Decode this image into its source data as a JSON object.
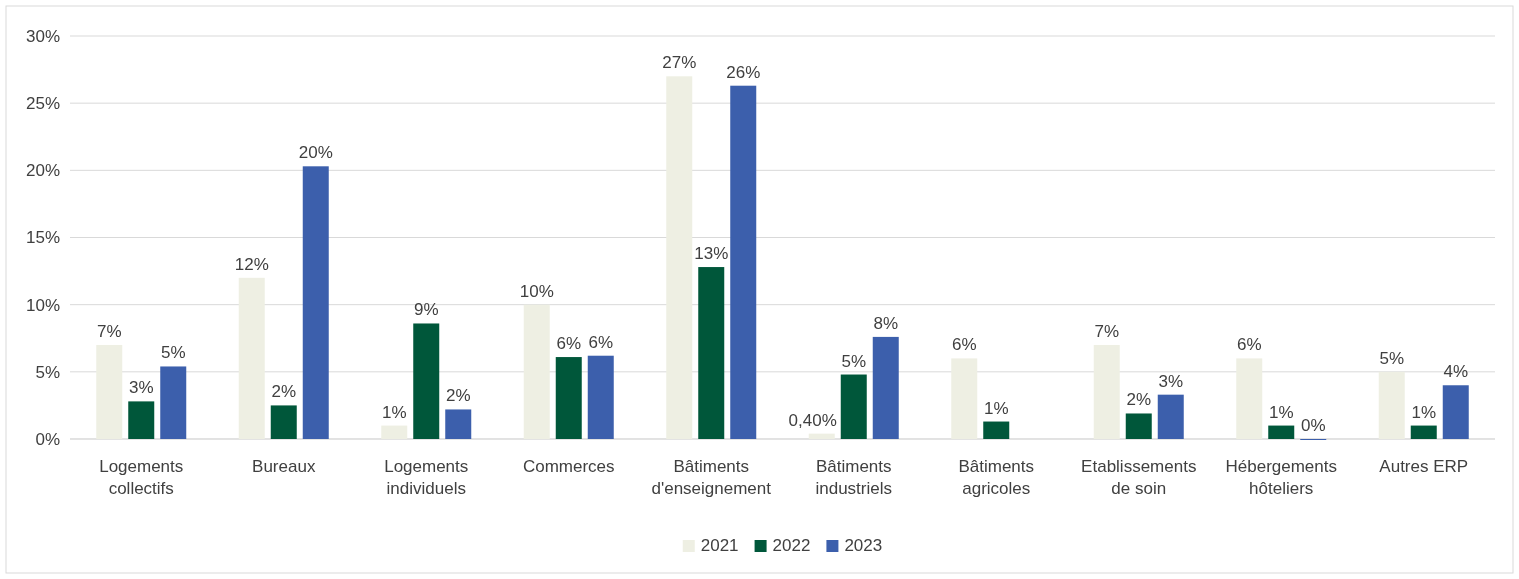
{
  "chart_data": {
    "type": "bar",
    "categories": [
      "Logements collectifs",
      "Bureaux",
      "Logements individuels",
      "Commerces",
      "Bâtiments d'enseignement",
      "Bâtiments industriels",
      "Bâtiments agricoles",
      "Etablissements de soin",
      "Hébergements hôteliers",
      "Autres ERP"
    ],
    "series": [
      {
        "name": "2021",
        "color": "#eeefe3",
        "values": [
          7,
          12,
          1,
          10,
          27,
          0.4,
          6,
          7,
          6,
          5
        ],
        "value_labels": [
          "7%",
          "12%",
          "1%",
          "10%",
          "27%",
          "0,40%",
          "6%",
          "7%",
          "6%",
          "5%"
        ]
      },
      {
        "name": "2022",
        "color": "#00573a",
        "values": [
          2.8,
          2.5,
          8.6,
          6.1,
          12.8,
          4.8,
          1.3,
          1.9,
          1.0,
          1.0
        ],
        "value_labels": [
          "3%",
          "2%",
          "9%",
          "6%",
          "13%",
          "5%",
          "1%",
          "2%",
          "1%",
          "1%"
        ]
      },
      {
        "name": "2023",
        "color": "#3c5fac",
        "values": [
          5.4,
          20.3,
          2.2,
          6.2,
          26.3,
          7.6,
          null,
          3.3,
          0,
          4.0
        ],
        "value_labels": [
          "5%",
          "20%",
          "2%",
          "6%",
          "26%",
          "8%",
          null,
          "3%",
          "0%",
          "4%"
        ]
      }
    ],
    "ylim": [
      0,
      30
    ],
    "yticks": [
      {
        "value": 0,
        "label": "0%"
      },
      {
        "value": 5,
        "label": "5%"
      },
      {
        "value": 10,
        "label": "10%"
      },
      {
        "value": 15,
        "label": "15%"
      },
      {
        "value": 20,
        "label": "20%"
      },
      {
        "value": 25,
        "label": "25%"
      },
      {
        "value": 30,
        "label": "30%"
      }
    ],
    "grid": "y",
    "legend": "bottom"
  }
}
